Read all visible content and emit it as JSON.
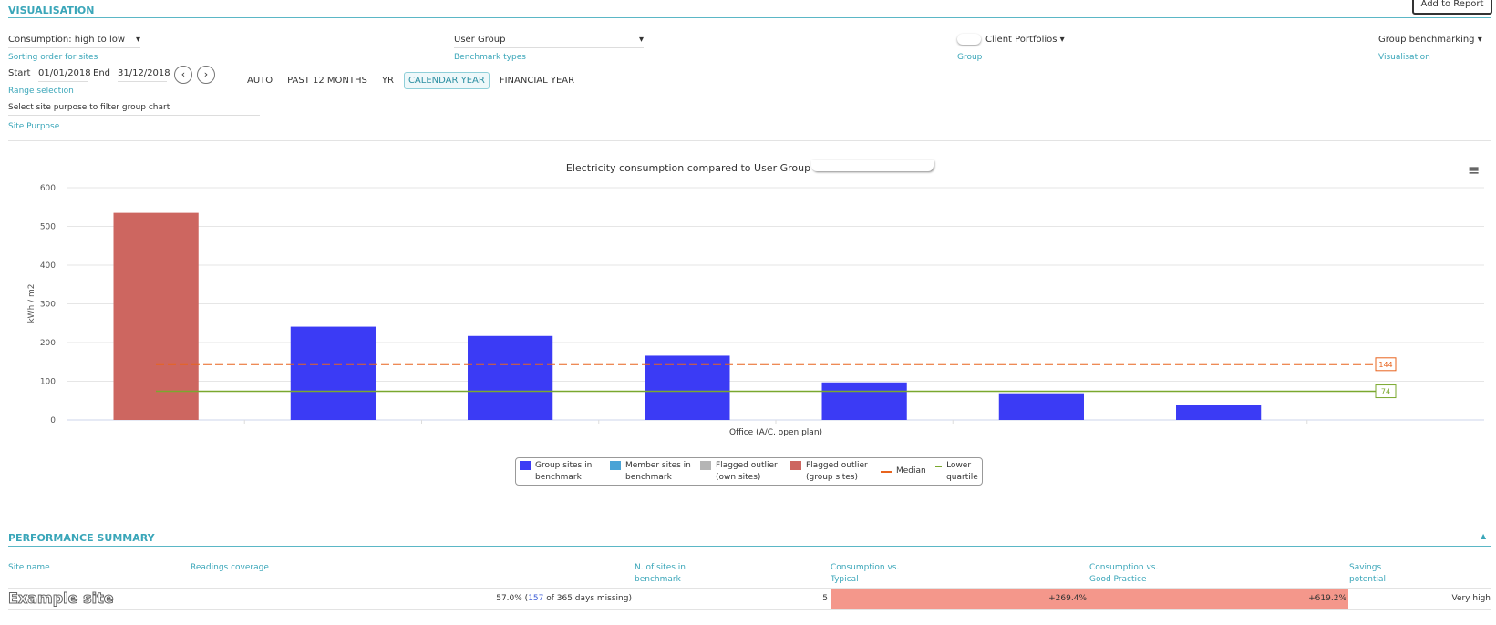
{
  "header": {
    "title": "VISUALISATION",
    "button": "Add to Report"
  },
  "controls": {
    "sorting": {
      "value": "Consumption: high to low",
      "label": "Sorting order for sites"
    },
    "benchmark": {
      "value": "User Group",
      "label": "Benchmark types"
    },
    "group": {
      "value": "Client Portfolios",
      "label": "Group"
    },
    "visualisation": {
      "value": "Group benchmarking",
      "label": "Visualisation"
    }
  },
  "range": {
    "start_label": "Start",
    "start": "01/01/2018",
    "end_label": "End",
    "end": "31/12/2018",
    "label": "Range selection",
    "options": [
      "AUTO",
      "PAST 12 MONTHS",
      "YR",
      "CALENDAR YEAR",
      "FINANCIAL YEAR"
    ],
    "selected": 3
  },
  "purpose": {
    "placeholder": "Select site purpose to filter group chart",
    "label": "Site Purpose"
  },
  "chart_data": {
    "type": "bar",
    "title": "Electricity consumption compared to User Group",
    "y_label": "kWh / m2",
    "x_label": "Office (A/C, open plan)",
    "values": [
      535,
      241,
      217,
      166,
      97,
      69,
      40
    ],
    "bar_colors": [
      "#cd6660",
      "#3b3bf5",
      "#3b3bf5",
      "#3b3bf5",
      "#3b3bf5",
      "#3b3bf5",
      "#3b3bf5"
    ],
    "ylim": [
      0,
      600
    ],
    "yticks": [
      0,
      100,
      200,
      300,
      400,
      500,
      600
    ],
    "grid": true,
    "reference_lines": [
      {
        "name": "Median",
        "value": 144,
        "color": "#e8641e",
        "dashed": true
      },
      {
        "name": "Lower quartile",
        "value": 74,
        "color": "#7aa82e",
        "dashed": false
      }
    ],
    "legend": [
      {
        "name": "Group sites in benchmark",
        "color": "#3b3bf5",
        "kind": "swatch"
      },
      {
        "name": "Member sites in benchmark",
        "color": "#4aa3d6",
        "kind": "swatch"
      },
      {
        "name": "Flagged outlier (own sites)",
        "color": "#b5b5b5",
        "kind": "swatch"
      },
      {
        "name": "Flagged outlier (group sites)",
        "color": "#cd6660",
        "kind": "swatch"
      },
      {
        "name": "Median",
        "color": "#e8641e",
        "kind": "line"
      },
      {
        "name": "Lower quartile",
        "color": "#7aa82e",
        "kind": "line"
      }
    ]
  },
  "summary": {
    "title": "PERFORMANCE SUMMARY",
    "columns": [
      "Site name",
      "Readings coverage",
      "N. of sites in benchmark",
      "Consumption vs. Typical",
      "Consumption vs. Good Practice",
      "Savings potential"
    ],
    "rows": [
      {
        "site": "Example site",
        "coverage_a": "57.0% (",
        "missing": "157",
        "coverage_b": " of 365 days missing)",
        "n_sites": 5,
        "typical": "+269.4%",
        "good": "+619.2%",
        "savings": "Very high"
      }
    ]
  }
}
